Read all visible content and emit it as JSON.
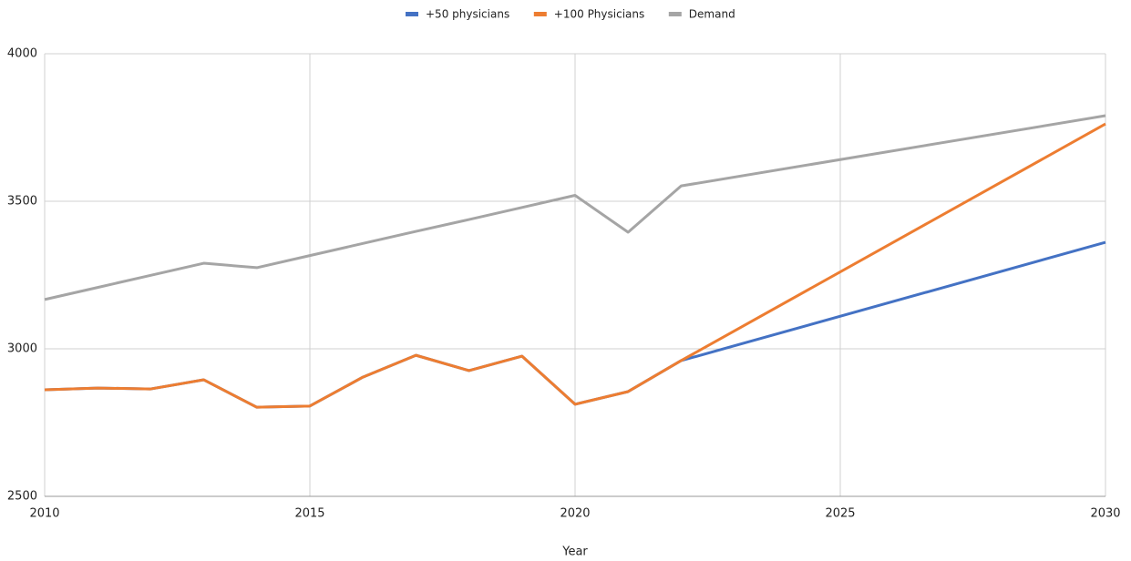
{
  "chart_data": {
    "type": "line",
    "x_label": "Year",
    "x": [
      2010,
      2011,
      2012,
      2013,
      2014,
      2015,
      2016,
      2017,
      2018,
      2019,
      2020,
      2021,
      2022,
      2030
    ],
    "series": [
      {
        "name": "+50 physicians",
        "color": "#4472c4",
        "values": [
          2861,
          2867,
          2864,
          2895,
          2802,
          2806,
          2904,
          2978,
          2926,
          2975,
          2812,
          2855,
          2960,
          3361
        ]
      },
      {
        "name": "+100 Physicians",
        "color": "#ed7d31",
        "values": [
          2861,
          2867,
          2864,
          2895,
          2802,
          2806,
          2904,
          2978,
          2926,
          2975,
          2812,
          2855,
          2960,
          3762
        ]
      },
      {
        "name": "Demand",
        "color": "#a5a5a5",
        "values": [
          3167,
          3208,
          3249,
          3290,
          3275,
          3316,
          3357,
          3398,
          3438,
          3479,
          3520,
          3395,
          3552,
          3790
        ]
      }
    ],
    "xlim": [
      2010,
      2030
    ],
    "xticks": [
      2010,
      2015,
      2020,
      2025,
      2030
    ],
    "ylim": [
      2500,
      4000
    ],
    "yticks": [
      2500,
      3000,
      3500,
      4000
    ],
    "grid": true,
    "legend": "top"
  }
}
